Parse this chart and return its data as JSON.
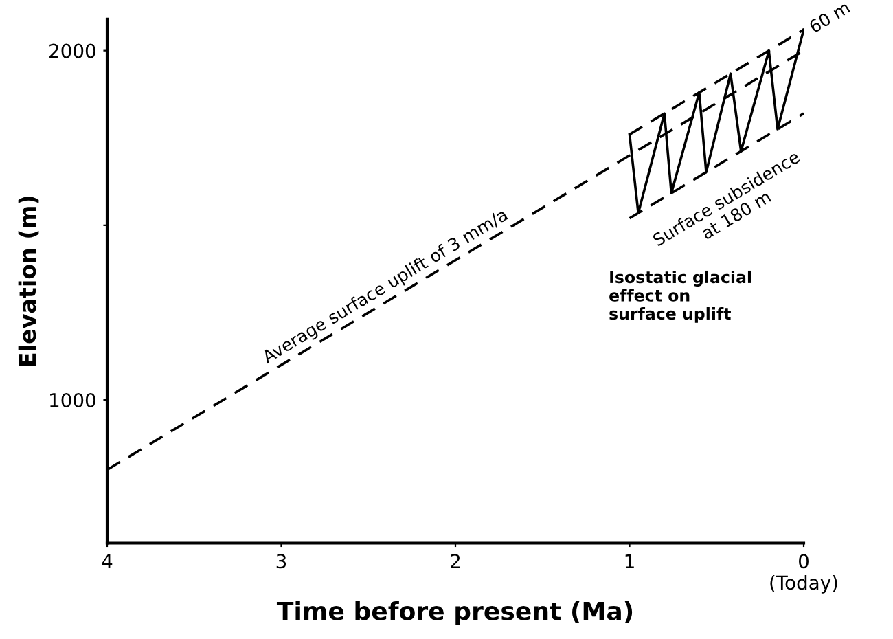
{
  "chart_data": {
    "type": "line",
    "xlabel": "Time before present (Ma)",
    "ylabel": "Elevation (m)",
    "xlim": [
      4,
      0
    ],
    "ylim": [
      590,
      2090
    ],
    "xticks": [
      4,
      3,
      2,
      1,
      {
        "value": 0,
        "label": "0\n(Today)"
      }
    ],
    "yticks": [
      1000,
      {
        "value": 1500,
        "label": null
      },
      2000
    ],
    "grid": false,
    "legend": false,
    "series": [
      {
        "color": "#000000",
        "line_style": "dashed",
        "x": [
          4,
          0
        ],
        "values": [
          800,
          2000
        ]
      },
      {
        "color": "#000000",
        "line_style": "dashed",
        "x": [
          1.0,
          0
        ],
        "values": [
          1760,
          2060
        ]
      },
      {
        "color": "#000000",
        "line_style": "dashed",
        "x": [
          1.0,
          0
        ],
        "values": [
          1520,
          1820
        ]
      },
      {
        "color": "#000000",
        "line_style": "solid",
        "x": [
          1.0,
          0.95,
          0.8,
          0.76,
          0.6,
          0.56,
          0.42,
          0.36,
          0.2,
          0.15,
          0.0
        ],
        "values": [
          1760,
          1535,
          1820,
          1592,
          1880,
          1652,
          1934,
          1712,
          1999,
          1775,
          2060
        ]
      }
    ],
    "annotations": [
      {
        "text": "Average surface uplift of 3 mm/a",
        "x": 2.4,
        "y": 1280
      },
      {
        "text": "60 m",
        "x": 0,
        "y": 2060
      },
      {
        "text": "Surface subsidence\nat 180 m",
        "x": 0.5,
        "y": 1670
      },
      "Isostatic glacial\neffect on\nsurface uplift"
    ]
  }
}
